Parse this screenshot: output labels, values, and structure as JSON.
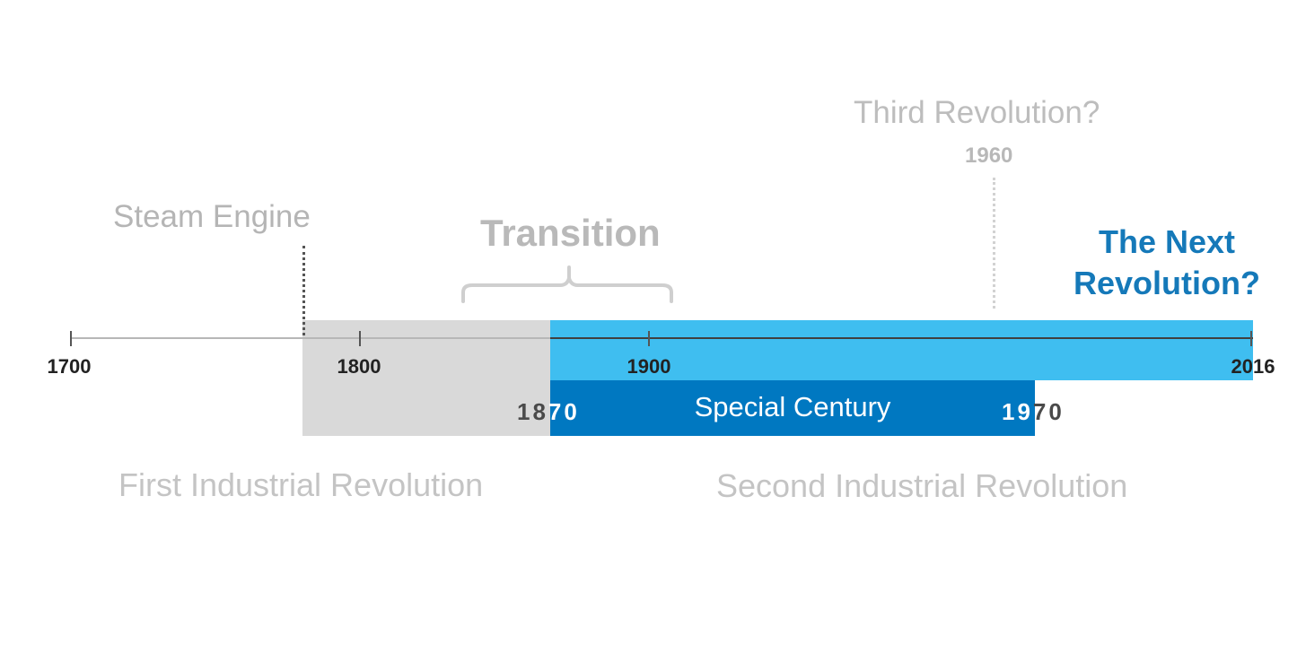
{
  "axis": {
    "ticks": [
      "1700",
      "1800",
      "1900",
      "2016"
    ],
    "colors": {
      "past": "#b7b7b7",
      "present": "#404040"
    }
  },
  "events": {
    "steam_engine": "Steam Engine",
    "transition": "Transition",
    "third_revolution": "Third Revolution?",
    "third_revolution_year": "1960",
    "next_revolution_line1": "The Next",
    "next_revolution_line2": "Revolution?"
  },
  "special_century": {
    "label": "Special Century",
    "start_year_part1": "18",
    "start_year_part2": "70",
    "end_year_part1": "19",
    "end_year_part2": "70"
  },
  "periods": {
    "first": "First Industrial Revolution",
    "second": "Second Industrial Revolution"
  },
  "colors": {
    "first_band": "#d9d9d9",
    "second_band": "#3fbef0",
    "special_band": "#0078c1",
    "next_revolution": "#1579b9"
  }
}
